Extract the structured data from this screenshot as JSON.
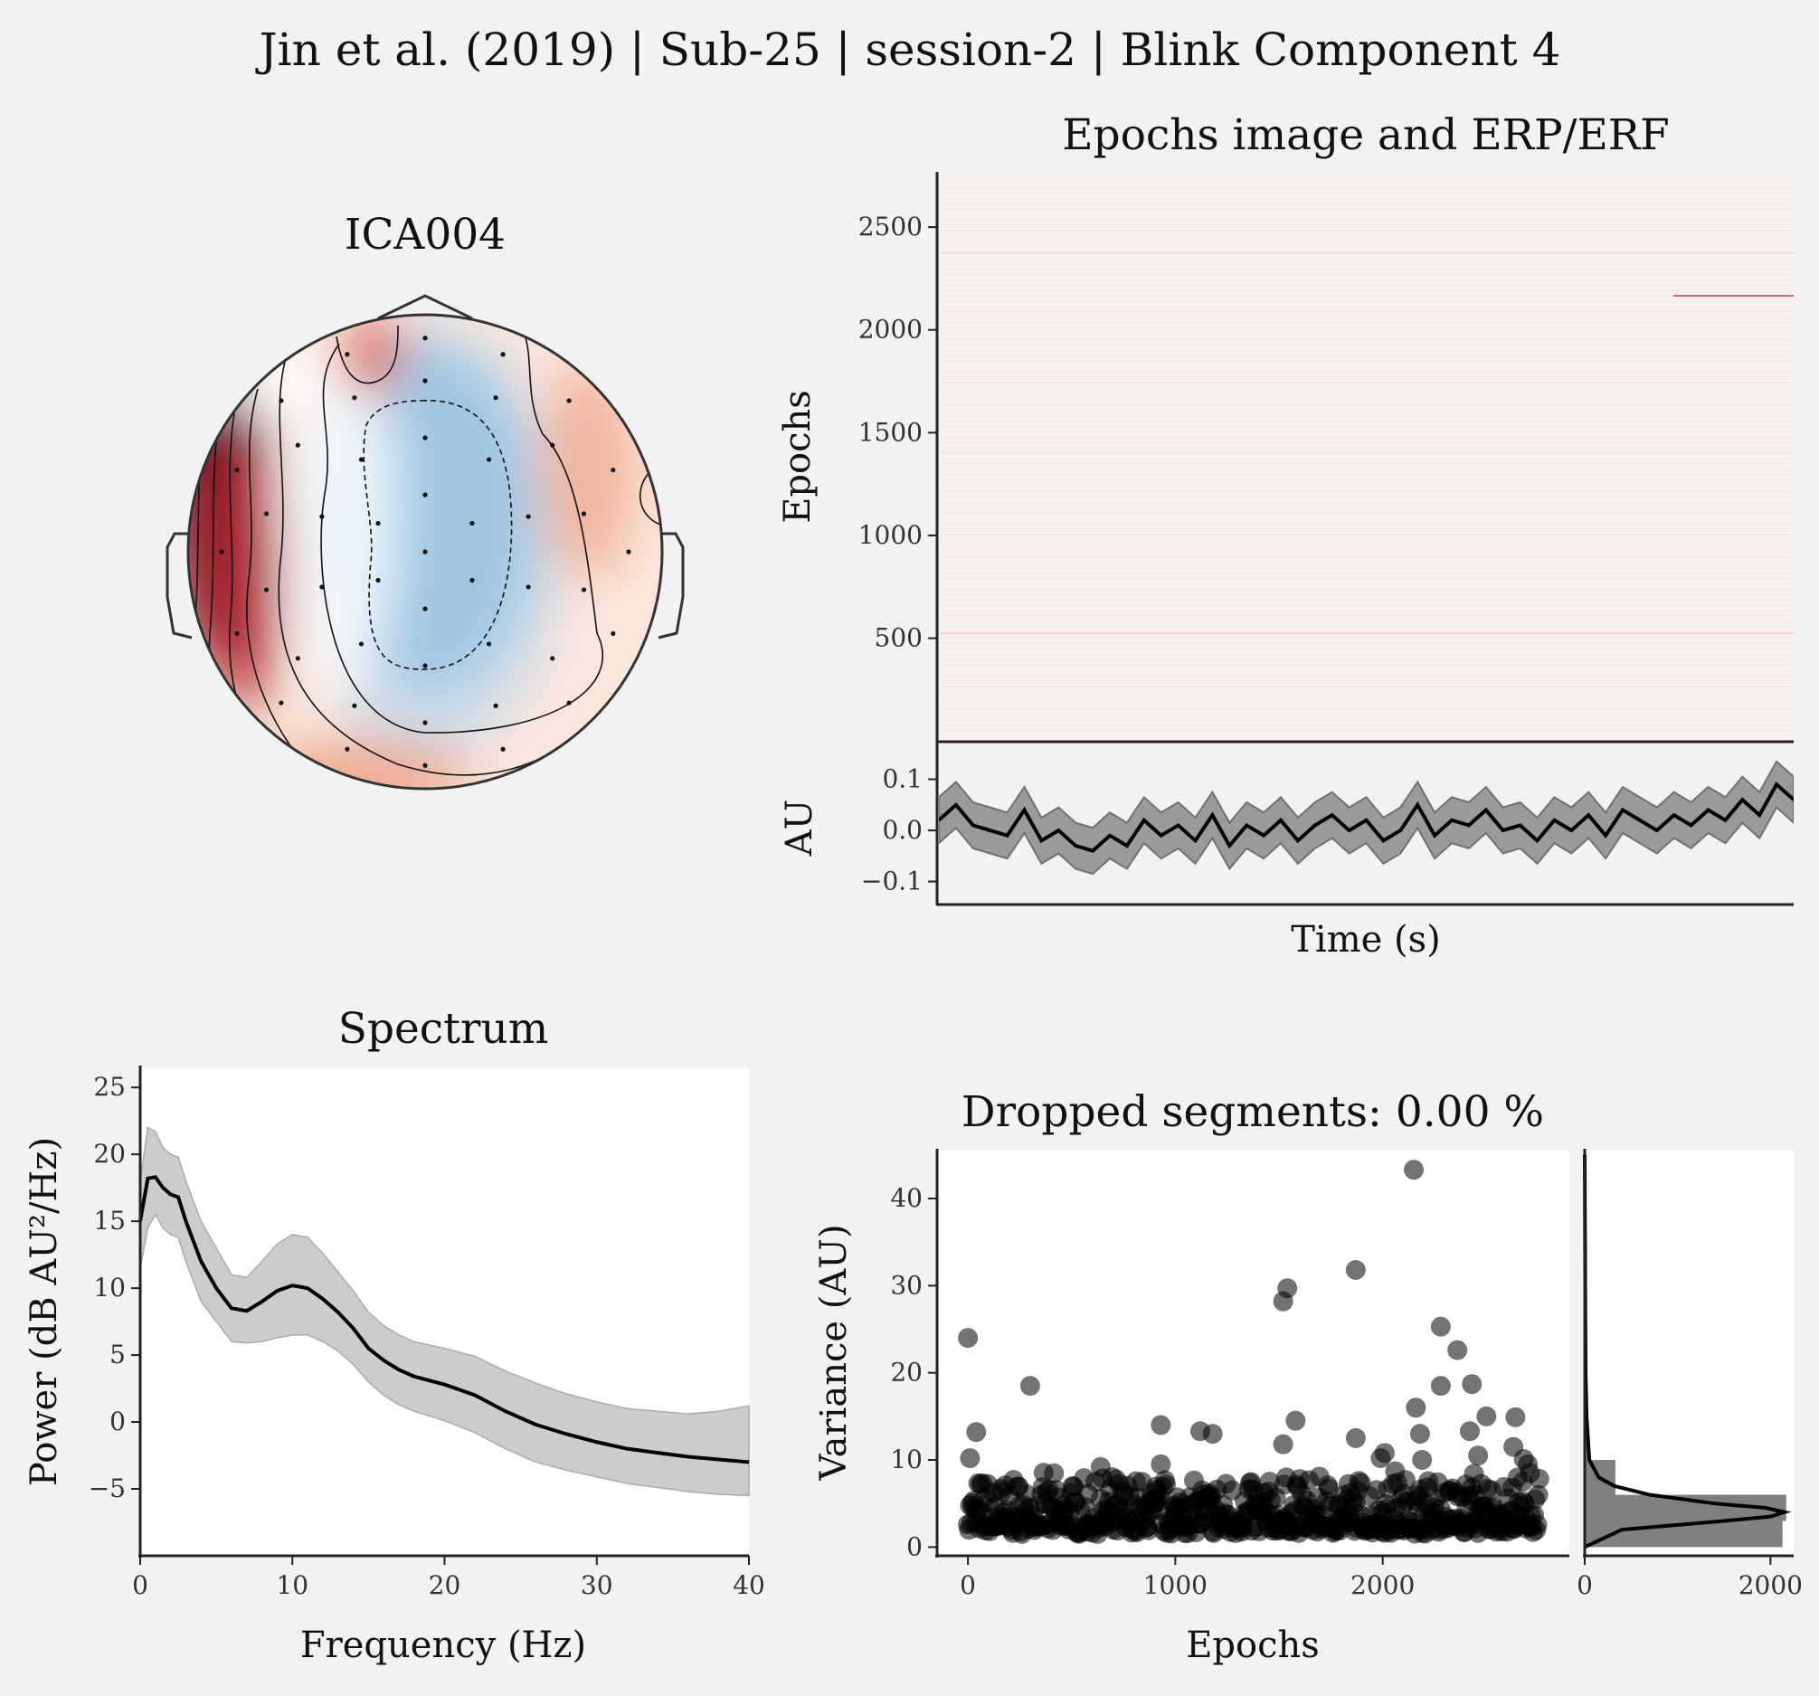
{
  "figure": {
    "suptitle": "Jin et al. (2019) | Sub-25 | session-2 | Blink Component 4"
  },
  "chart_data": [
    {
      "id": "topomap",
      "type": "heatmap",
      "title": "ICA004",
      "colormap": "RdBu_r",
      "colors": {
        "positive": "#67001f",
        "negative": "#2166ac",
        "neutral": "#ffffff"
      }
    },
    {
      "id": "epochs_image",
      "type": "heatmap",
      "title": "Epochs image and ERP/ERF",
      "ylabel": "Epochs",
      "ylim": [
        1,
        2760
      ],
      "yticks": [
        500,
        1000,
        1500,
        2000,
        2500
      ],
      "ytick_labels": [
        "500",
        "1000",
        "1500",
        "2000",
        "2500"
      ],
      "colormap": "RdBu_r"
    },
    {
      "id": "erp",
      "type": "line",
      "xlabel": "Time (s)",
      "ylabel": "AU",
      "xlim": [
        0,
        1
      ],
      "ylim": [
        -0.145,
        0.17
      ],
      "yticks": [
        -0.1,
        0.0,
        0.1
      ],
      "ytick_labels": [
        "−0.1",
        "0.0",
        "0.1"
      ],
      "series": [
        {
          "x": [
            0.0,
            0.02,
            0.04,
            0.06,
            0.08,
            0.1,
            0.12,
            0.14,
            0.16,
            0.18,
            0.2,
            0.22,
            0.24,
            0.26,
            0.28,
            0.3,
            0.32,
            0.34,
            0.36,
            0.38,
            0.4,
            0.42,
            0.44,
            0.46,
            0.48,
            0.5,
            0.52,
            0.54,
            0.56,
            0.58,
            0.6,
            0.62,
            0.64,
            0.66,
            0.68,
            0.7,
            0.72,
            0.74,
            0.76,
            0.78,
            0.8,
            0.82,
            0.84,
            0.86,
            0.88,
            0.9,
            0.92,
            0.94,
            0.96,
            0.98,
            1.0
          ],
          "values": [
            0.02,
            0.05,
            0.01,
            0.0,
            -0.01,
            0.04,
            -0.02,
            0.0,
            -0.03,
            -0.04,
            -0.01,
            -0.03,
            0.02,
            -0.01,
            0.01,
            -0.02,
            0.03,
            -0.03,
            0.01,
            -0.01,
            0.02,
            -0.02,
            0.01,
            0.03,
            0.0,
            0.02,
            -0.02,
            0.0,
            0.05,
            -0.01,
            0.02,
            0.01,
            0.04,
            0.0,
            0.01,
            -0.02,
            0.02,
            0.0,
            0.03,
            -0.01,
            0.04,
            0.02,
            0.0,
            0.03,
            0.01,
            0.04,
            0.02,
            0.06,
            0.03,
            0.09,
            0.06
          ],
          "band": 0.045,
          "colors": {
            "line": "#000000",
            "band": "#808080"
          }
        }
      ]
    },
    {
      "id": "spectrum",
      "type": "area",
      "title": "Spectrum",
      "xlabel": "Frequency (Hz)",
      "ylabel": "Power (dB AU²/Hz)",
      "xlim": [
        0,
        40
      ],
      "ylim": [
        -10,
        26.5
      ],
      "xticks": [
        0,
        10,
        20,
        30,
        40
      ],
      "xtick_labels": [
        "0",
        "10",
        "20",
        "30",
        "40"
      ],
      "yticks": [
        -5,
        0,
        5,
        10,
        15,
        20,
        25
      ],
      "ytick_labels": [
        "−5",
        "0",
        "5",
        "10",
        "15",
        "20",
        "25"
      ],
      "series": [
        {
          "x": [
            0,
            0.5,
            1,
            1.5,
            2,
            2.5,
            3,
            4,
            5,
            6,
            7,
            8,
            9,
            10,
            11,
            12,
            13,
            14,
            15,
            16,
            17,
            18,
            20,
            22,
            24,
            26,
            28,
            30,
            32,
            34,
            36,
            38,
            40
          ],
          "values": [
            15.0,
            18.2,
            18.3,
            17.5,
            17.0,
            16.8,
            15.0,
            12.0,
            10.0,
            8.5,
            8.3,
            9.0,
            9.8,
            10.2,
            10.0,
            9.2,
            8.2,
            7.0,
            5.5,
            4.6,
            3.9,
            3.4,
            2.8,
            2.0,
            0.8,
            -0.2,
            -0.9,
            -1.5,
            -2.0,
            -2.3,
            -2.6,
            -2.8,
            -3.0
          ],
          "lower": [
            11.5,
            14.5,
            15.5,
            14.5,
            14.0,
            13.8,
            12.0,
            9.0,
            7.5,
            6.0,
            5.9,
            6.0,
            6.3,
            6.5,
            6.5,
            6.0,
            5.3,
            4.3,
            3.0,
            2.0,
            1.3,
            0.8,
            0.1,
            -0.8,
            -2.0,
            -3.0,
            -3.6,
            -4.1,
            -4.6,
            -4.9,
            -5.2,
            -5.4,
            -5.5
          ],
          "upper": [
            18.0,
            22.0,
            21.7,
            20.5,
            20.0,
            19.8,
            18.0,
            15.0,
            13.0,
            11.0,
            10.8,
            12.0,
            13.3,
            14.0,
            13.8,
            12.6,
            11.2,
            9.8,
            8.2,
            7.2,
            6.5,
            6.0,
            5.5,
            4.9,
            3.8,
            2.9,
            2.1,
            1.5,
            1.0,
            0.8,
            0.6,
            0.8,
            1.2
          ],
          "colors": {
            "line": "#000000",
            "band": "#c8c8c8"
          }
        }
      ]
    },
    {
      "id": "dropped",
      "type": "scatter",
      "title": "Dropped segments: 0.00 %",
      "xlabel": "Epochs",
      "ylabel": "Variance (AU)",
      "xlim": [
        -140,
        2900
      ],
      "ylim": [
        -1,
        45.5
      ],
      "xticks": [
        0,
        1000,
        2000
      ],
      "xtick_labels": [
        "0",
        "1000",
        "2000"
      ],
      "yticks": [
        0,
        10,
        20,
        30,
        40
      ],
      "ytick_labels": [
        "0",
        "10",
        "20",
        "30",
        "40"
      ],
      "n_epochs": 2760,
      "typical_variance": [
        1.5,
        7.5
      ],
      "outliers": [
        [
          0,
          24
        ],
        [
          40,
          13.2
        ],
        [
          10,
          10.2
        ],
        [
          300,
          18.5
        ],
        [
          640,
          9.2
        ],
        [
          930,
          14
        ],
        [
          930,
          9.5
        ],
        [
          1120,
          13.3
        ],
        [
          1180,
          13
        ],
        [
          1520,
          28.2
        ],
        [
          1540,
          29.7
        ],
        [
          1580,
          14.5
        ],
        [
          1520,
          11.8
        ],
        [
          1870,
          31.8
        ],
        [
          1870,
          12.5
        ],
        [
          2150,
          43.3
        ],
        [
          2280,
          25.3
        ],
        [
          2360,
          22.6
        ],
        [
          2280,
          18.5
        ],
        [
          2430,
          18.7
        ],
        [
          2160,
          16
        ],
        [
          2180,
          13
        ],
        [
          2500,
          15
        ],
        [
          2420,
          13.3
        ],
        [
          2640,
          14.9
        ],
        [
          1990,
          10.2
        ],
        [
          2010,
          10.8
        ],
        [
          2190,
          10
        ],
        [
          2460,
          10.5
        ],
        [
          2630,
          11.5
        ],
        [
          2680,
          10.1
        ],
        [
          2700,
          9.5
        ],
        [
          2710,
          8.5
        ],
        [
          2440,
          8.4
        ],
        [
          2060,
          8.7
        ]
      ],
      "colors": {
        "points": "#000000"
      }
    },
    {
      "id": "variance_hist",
      "type": "bar",
      "xlim": [
        0,
        2250
      ],
      "xticks": [
        0,
        2000
      ],
      "xtick_labels": [
        "0",
        "2000"
      ],
      "bins": [
        [
          0,
          3,
          2130
        ],
        [
          3,
          6,
          2170
        ],
        [
          6,
          10,
          330
        ],
        [
          10,
          15,
          40
        ],
        [
          15,
          20,
          10
        ],
        [
          20,
          45,
          4
        ]
      ],
      "kde_x": [
        0,
        2,
        3,
        3.5,
        4,
        4.5,
        5,
        6,
        7,
        8,
        10,
        15,
        20,
        30,
        45
      ],
      "kde_y": [
        0,
        400,
        1500,
        2000,
        2150,
        1950,
        1400,
        700,
        320,
        150,
        50,
        20,
        10,
        5,
        0
      ],
      "colors": {
        "bars": "#808080",
        "kde": "#000000"
      }
    }
  ]
}
